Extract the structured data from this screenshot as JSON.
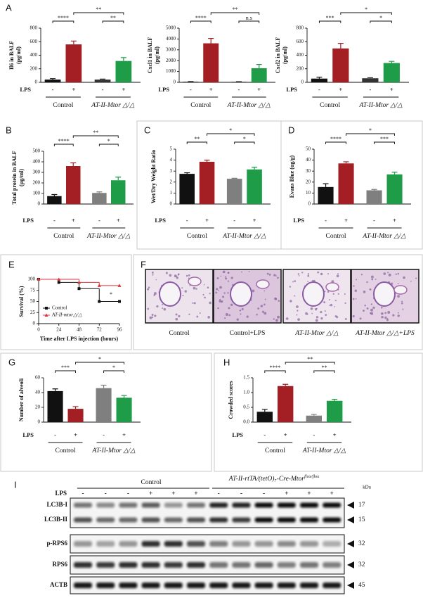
{
  "panel_letters": [
    "A",
    "B",
    "C",
    "D",
    "E",
    "F",
    "G",
    "H",
    "I"
  ],
  "chart_data": [
    {
      "type": "bar",
      "ylabel": [
        "Il6 in BALF",
        "(pg/ml)"
      ],
      "xlabel": "LPS",
      "categories": [
        "-",
        "+",
        "-",
        "+"
      ],
      "groups": [
        "Control",
        "AT-II-Mtor △/△"
      ],
      "values": [
        40,
        560,
        40,
        315
      ],
      "errors": [
        15,
        50,
        8,
        50
      ],
      "colors": [
        "#111111",
        "#a31f24",
        "#333333",
        "#1e9c48"
      ],
      "ylim": [
        0,
        800
      ],
      "yticks": [
        0,
        200,
        400,
        600,
        800
      ],
      "significance": [
        "****",
        "**",
        "**"
      ]
    },
    {
      "type": "bar",
      "ylabel": [
        "Cxcl1 in BALF",
        "(pg/ml)"
      ],
      "xlabel": "LPS",
      "categories": [
        "-",
        "+",
        "-",
        "+"
      ],
      "groups": [
        "Control",
        "AT-II-Mtor △/△"
      ],
      "values": [
        50,
        3600,
        50,
        1300
      ],
      "errors": [
        20,
        450,
        20,
        350
      ],
      "colors": [
        "#111111",
        "#a31f24",
        "#333333",
        "#1e9c48"
      ],
      "ylim": [
        0,
        5000
      ],
      "yticks": [
        0,
        1000,
        2000,
        3000,
        4000,
        5000
      ],
      "significance": [
        "****",
        "**",
        "n.s"
      ]
    },
    {
      "type": "bar",
      "ylabel": [
        "Cxcl2 in BALF",
        "(pg/ml)"
      ],
      "xlabel": "LPS",
      "categories": [
        "-",
        "+",
        "-",
        "+"
      ],
      "groups": [
        "Control",
        "AT-II-Mtor △/△"
      ],
      "values": [
        55,
        500,
        60,
        285
      ],
      "errors": [
        20,
        75,
        8,
        25
      ],
      "colors": [
        "#111111",
        "#a31f24",
        "#333333",
        "#1e9c48"
      ],
      "ylim": [
        0,
        800
      ],
      "yticks": [
        0,
        200,
        400,
        600,
        800
      ],
      "significance": [
        "***",
        "*",
        "*"
      ]
    },
    {
      "type": "bar",
      "ylabel": [
        "Total protein in BALF",
        "(µg/ml)"
      ],
      "xlabel": "LPS",
      "categories": [
        "-",
        "+",
        "-",
        "+"
      ],
      "groups": [
        "Control",
        "AT-II-Mtor △/△"
      ],
      "values": [
        75,
        360,
        105,
        225
      ],
      "errors": [
        15,
        30,
        10,
        30
      ],
      "colors": [
        "#111111",
        "#a31f24",
        "#7f7f7f",
        "#1e9c48"
      ],
      "ylim": [
        0,
        500
      ],
      "yticks": [
        0,
        100,
        200,
        300,
        400,
        500
      ],
      "significance": [
        "****",
        "**",
        "*"
      ]
    },
    {
      "type": "bar",
      "ylabel": [
        "Wet/Dry Weight  Ratio"
      ],
      "xlabel": "LPS",
      "categories": [
        "-",
        "+",
        "-",
        "+"
      ],
      "groups": [
        "Control",
        "AT-II-Mtor △/△"
      ],
      "values": [
        2.75,
        3.85,
        2.3,
        3.15
      ],
      "errors": [
        0.1,
        0.15,
        0.05,
        0.2
      ],
      "colors": [
        "#111111",
        "#a31f24",
        "#7f7f7f",
        "#1e9c48"
      ],
      "ylim": [
        0,
        5
      ],
      "yticks": [
        0,
        1,
        2,
        3,
        4,
        5
      ],
      "significance": [
        "**",
        "*",
        "*"
      ]
    },
    {
      "type": "bar",
      "ylabel": [
        "Evans Blue (ug/g)"
      ],
      "xlabel": "LPS",
      "categories": [
        "-",
        "+",
        "-",
        "+"
      ],
      "groups": [
        "Control",
        "AT-II-Mtor △/△"
      ],
      "values": [
        15.5,
        37,
        12.5,
        27
      ],
      "errors": [
        3,
        1.5,
        0.8,
        2
      ],
      "colors": [
        "#111111",
        "#a31f24",
        "#7f7f7f",
        "#1e9c48"
      ],
      "ylim": [
        0,
        50
      ],
      "yticks": [
        0,
        10,
        20,
        30,
        40,
        50
      ],
      "significance": [
        "****",
        "*",
        "***"
      ]
    },
    {
      "type": "line",
      "ylabel": "Survival (%)",
      "xlabel": "Time after LPS injection  (hours)",
      "x": [
        0,
        24,
        48,
        72,
        96
      ],
      "xlim": [
        0,
        96
      ],
      "xticks": [
        0,
        24,
        48,
        72,
        96
      ],
      "ylim": [
        0,
        100
      ],
      "yticks": [
        0,
        25,
        50,
        75,
        100
      ],
      "series": [
        {
          "name": "Control",
          "color": "#111111",
          "marker": "square",
          "values": [
            100,
            93,
            79,
            50,
            50
          ]
        },
        {
          "name": "AT-II-mtor△/△",
          "color": "#d9343a",
          "marker": "triangle",
          "values": [
            100,
            100,
            93,
            86,
            86
          ]
        }
      ],
      "legend": "lower left",
      "annotation": "*"
    },
    {
      "type": "bar",
      "ylabel": [
        "Number of alveoli"
      ],
      "xlabel": "LPS",
      "categories": [
        "-",
        "+",
        "-",
        "+"
      ],
      "groups": [
        "Control",
        "AT-II-Mtor △/△"
      ],
      "values": [
        42,
        18,
        46,
        33
      ],
      "errors": [
        3,
        3,
        4,
        3
      ],
      "colors": [
        "#111111",
        "#a31f24",
        "#7f7f7f",
        "#1e9c48"
      ],
      "ylim": [
        0,
        60
      ],
      "yticks": [
        0,
        20,
        40,
        60
      ],
      "significance": [
        "***",
        "*",
        "*"
      ]
    },
    {
      "type": "bar",
      "ylabel": [
        "Crowded scores"
      ],
      "xlabel": "LPS",
      "categories": [
        "-",
        "+",
        "-",
        "+"
      ],
      "groups": [
        "Control",
        "AT-II-Mtor △/△"
      ],
      "values": [
        0.35,
        1.22,
        0.22,
        0.72
      ],
      "errors": [
        0.08,
        0.06,
        0.04,
        0.05
      ],
      "colors": [
        "#111111",
        "#a31f24",
        "#7f7f7f",
        "#1e9c48"
      ],
      "ylim": [
        0,
        1.5
      ],
      "yticks": [
        {
          "value": 0,
          "label": "0.0"
        },
        0.5,
        {
          "value": 1,
          "label": "1.0"
        },
        1.5
      ],
      "significance": [
        "****",
        "**",
        "**"
      ]
    }
  ],
  "histology": {
    "labels": [
      "Control",
      "Control+LPS",
      "AT-II-Mtor △/△",
      "AT-II-Mtor △/△+LPS"
    ]
  },
  "blot": {
    "control": "Control",
    "genotype": "AT-II-rtTA/(tetO)₇-Cre-Mtor",
    "genotype_sup": "flox/flox",
    "lps_label": "LPS",
    "lanes": [
      "-",
      "-",
      "-",
      "+",
      "+",
      "+",
      "-",
      "-",
      "-",
      "+",
      "+",
      "+"
    ],
    "kda_label": "kDa",
    "rows": [
      {
        "name": "LC3B-I",
        "kda": 17
      },
      {
        "name": "LC3B-II",
        "kda": 15
      },
      {
        "name": "p-RPS6",
        "kda": 32
      },
      {
        "name": "RPS6",
        "kda": 32
      },
      {
        "name": "ACTB",
        "kda": 45
      }
    ]
  }
}
